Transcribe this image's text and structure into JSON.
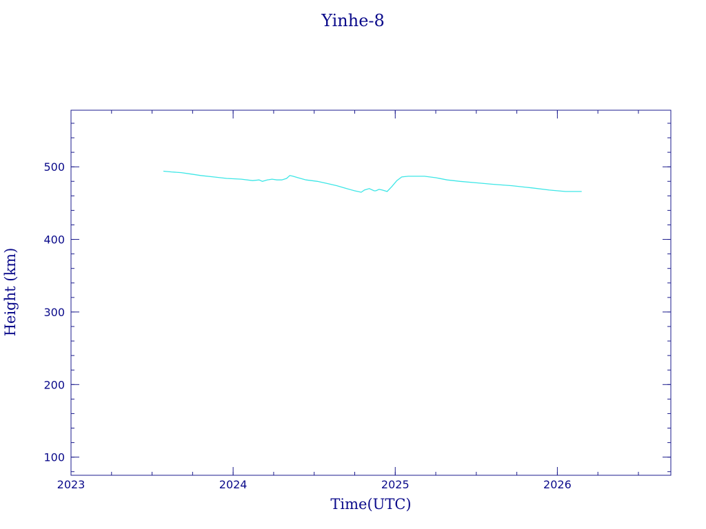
{
  "chart_data": {
    "type": "line",
    "title": "Yinhe-8",
    "xlabel": "Time(UTC)",
    "ylabel": "Height (km)",
    "xlim": [
      2023.0,
      2026.7
    ],
    "ylim": [
      75,
      578
    ],
    "x_ticks": [
      2023,
      2024,
      2025,
      2026
    ],
    "y_ticks": [
      100,
      200,
      300,
      400,
      500
    ],
    "x_minor_step": 0.25,
    "y_minor_step": 20,
    "grid": false,
    "legend": "none",
    "colors": {
      "axes": "#1a1a8c",
      "text": "#0a0a8a",
      "line": "#3ce6e6",
      "background": "#ffffff"
    },
    "series": [
      {
        "x": [
          2023.57,
          2023.62,
          2023.68,
          2023.74,
          2023.8,
          2023.88,
          2023.96,
          2024.05,
          2024.12,
          2024.16,
          2024.18,
          2024.21,
          2024.24,
          2024.27,
          2024.3,
          2024.33,
          2024.35,
          2024.37,
          2024.4,
          2024.45,
          2024.52,
          2024.58,
          2024.64,
          2024.7,
          2024.75,
          2024.79,
          2024.81,
          2024.84,
          2024.87,
          2024.88,
          2024.9,
          2024.92,
          2024.95,
          2024.98,
          2025.01,
          2025.04,
          2025.08,
          2025.12,
          2025.18,
          2025.25,
          2025.32,
          2025.4,
          2025.5,
          2025.6,
          2025.72,
          2025.84,
          2025.95,
          2026.05,
          2026.15
        ],
        "y": [
          494,
          493,
          492,
          490,
          488,
          486,
          484,
          483,
          481,
          482,
          480,
          482,
          483,
          482,
          482,
          484,
          488,
          487,
          485,
          482,
          480,
          477,
          474,
          470,
          467,
          465,
          468,
          470,
          467,
          467,
          469,
          468,
          466,
          473,
          481,
          486,
          487,
          487,
          487,
          485,
          482,
          480,
          478,
          476,
          474,
          471,
          468,
          466,
          466
        ]
      }
    ]
  }
}
